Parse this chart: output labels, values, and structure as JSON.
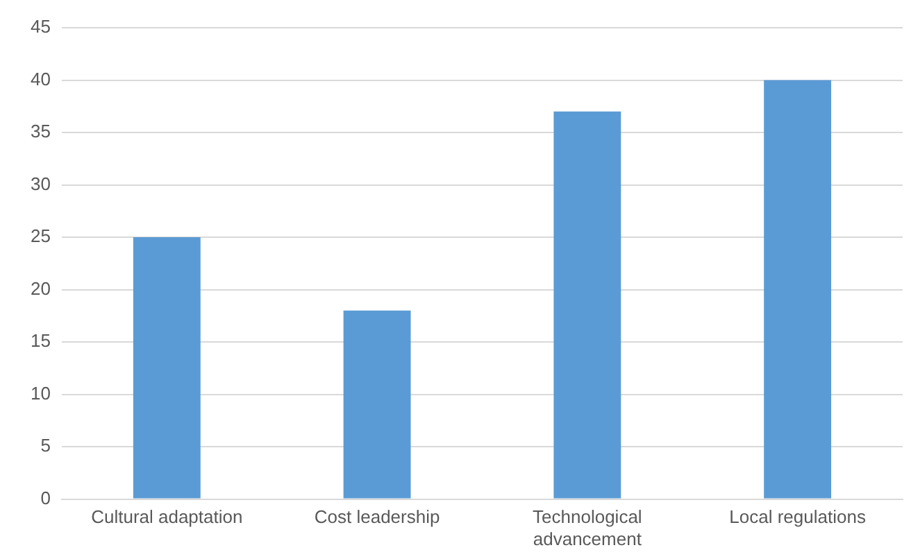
{
  "chart_data": {
    "type": "bar",
    "categories": [
      "Cultural adaptation",
      "Cost leadership",
      "Technological advancement",
      "Local regulations"
    ],
    "values": [
      25,
      18,
      37,
      40
    ],
    "color": "#5b9bd5",
    "ylim": [
      0,
      45
    ],
    "yticks": [
      0,
      5,
      10,
      15,
      20,
      25,
      30,
      35,
      40,
      45
    ],
    "grid": "y",
    "legend": false
  }
}
